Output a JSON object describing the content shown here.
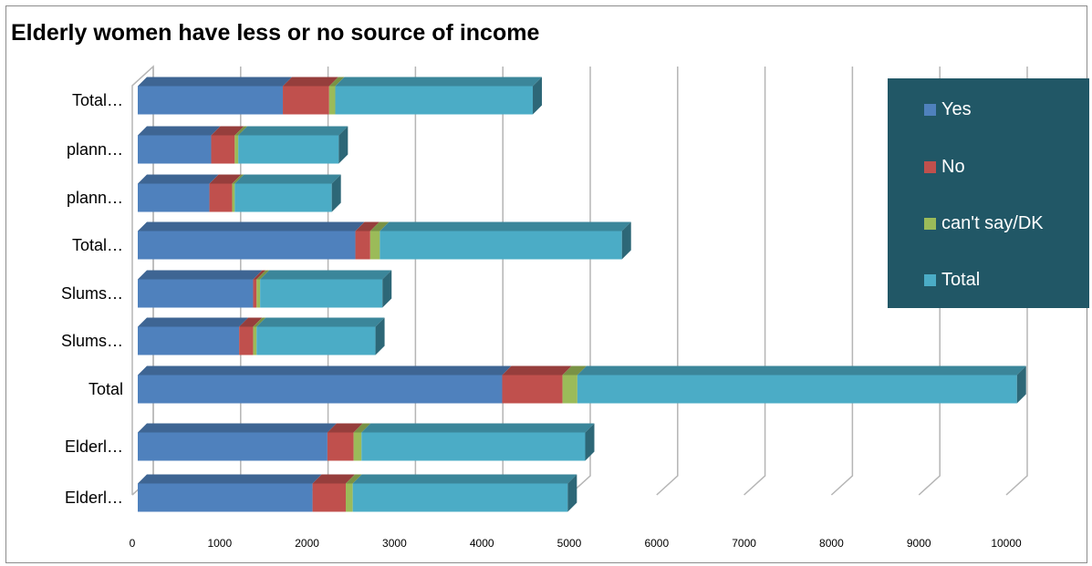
{
  "chart_data": {
    "type": "bar",
    "orientation": "horizontal",
    "stacked": true,
    "title": "Elderly women have less or no source of income",
    "categories": [
      "Elderl…",
      "Elderl…",
      "Total",
      "Slums…",
      "Slums…",
      "Total…",
      "plann…",
      "plann…",
      "Total…"
    ],
    "series": [
      {
        "name": "Yes",
        "color": "#4f81bd",
        "values": [
          2000,
          2170,
          4170,
          1160,
          1320,
          2490,
          820,
          840,
          1660
        ]
      },
      {
        "name": "No",
        "color": "#c0504d",
        "values": [
          380,
          300,
          690,
          160,
          40,
          170,
          260,
          270,
          530
        ]
      },
      {
        "name": "can't say/DK",
        "color": "#9bbb59",
        "values": [
          80,
          90,
          170,
          40,
          40,
          110,
          30,
          40,
          70
        ]
      },
      {
        "name": "Total",
        "color": "#4bacc6",
        "values": [
          2460,
          2560,
          5030,
          1360,
          1400,
          2770,
          1110,
          1150,
          2260
        ]
      }
    ],
    "x_ticks": [
      "0",
      "1000",
      "2000",
      "3000",
      "4000",
      "5000",
      "6000",
      "7000",
      "8000",
      "9000",
      "10000"
    ],
    "xlim": [
      0,
      10000
    ],
    "grid": true,
    "legend_position": "right"
  }
}
